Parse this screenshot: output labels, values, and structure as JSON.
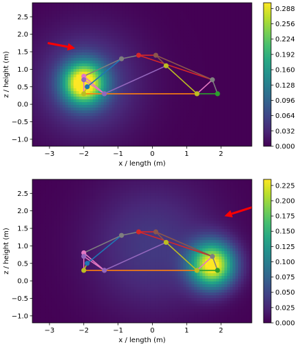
{
  "chart_data": [
    {
      "type": "heatmap",
      "xlabel": "x / length (m)",
      "ylabel": "z / height (m)",
      "xlim": [
        -3.5,
        2.9
      ],
      "ylim": [
        -1.2,
        2.9
      ],
      "xticks": [
        -3,
        -2,
        -1,
        0,
        1,
        2
      ],
      "yticks": [
        -1.0,
        -0.5,
        0.0,
        0.5,
        1.0,
        1.5,
        2.0,
        2.5
      ],
      "colormap": "viridis",
      "colorbar_range": [
        0.0,
        0.3
      ],
      "colorbar_ticks": [
        "0.000",
        "0.032",
        "0.064",
        "0.096",
        "0.128",
        "0.160",
        "0.192",
        "0.224",
        "0.256",
        "0.288"
      ],
      "hotspots": [
        {
          "x": -2.0,
          "z": 0.6,
          "peak": 0.3,
          "spread": 0.42
        },
        {
          "x": -1.9,
          "z": 0.6,
          "peak": 0.06,
          "spread": 1.1
        }
      ],
      "arrow": {
        "from": [
          -3.05,
          1.75
        ],
        "to": [
          -2.25,
          1.6
        ],
        "color": "#ff0000"
      }
    },
    {
      "type": "heatmap",
      "xlabel": "x / length (m)",
      "ylabel": "z / height (m)",
      "xlim": [
        -3.5,
        2.9
      ],
      "ylim": [
        -1.2,
        2.9
      ],
      "xticks": [
        -3,
        -2,
        -1,
        0,
        1,
        2
      ],
      "yticks": [
        -1.0,
        -0.5,
        0.0,
        0.5,
        1.0,
        1.5,
        2.0,
        2.5
      ],
      "colormap": "viridis",
      "colorbar_range": [
        0.0,
        0.235
      ],
      "colorbar_ticks": [
        "0.000",
        "0.025",
        "0.050",
        "0.075",
        "0.100",
        "0.125",
        "0.150",
        "0.175",
        "0.200",
        "0.225"
      ],
      "hotspots": [
        {
          "x": 1.75,
          "z": 0.45,
          "peak": 0.235,
          "spread": 0.45
        },
        {
          "x": 0.0,
          "z": 1.0,
          "peak": 0.04,
          "spread": 1.3
        }
      ],
      "arrow": {
        "from": [
          2.9,
          2.1
        ],
        "to": [
          2.1,
          1.85
        ],
        "color": "#ff0000"
      }
    }
  ],
  "skeleton": {
    "nodes": [
      {
        "id": "n1",
        "x": -2.0,
        "z": 0.8,
        "color": "#e377c2"
      },
      {
        "id": "n2",
        "x": -2.0,
        "z": 0.7,
        "color": "#9467bd"
      },
      {
        "id": "n3",
        "x": -1.9,
        "z": 0.5,
        "color": "#1f77b4"
      },
      {
        "id": "n4",
        "x": -2.0,
        "z": 0.3,
        "color": "#bcbd22"
      },
      {
        "id": "n5",
        "x": -1.4,
        "z": 0.3,
        "color": "#9467bd"
      },
      {
        "id": "n6",
        "x": -0.9,
        "z": 1.3,
        "color": "#7f7f7f"
      },
      {
        "id": "n7",
        "x": -0.4,
        "z": 1.4,
        "color": "#d62728"
      },
      {
        "id": "n8",
        "x": 0.1,
        "z": 1.4,
        "color": "#8c564b"
      },
      {
        "id": "n9",
        "x": 0.4,
        "z": 1.1,
        "color": "#bcbd22"
      },
      {
        "id": "n10",
        "x": 1.3,
        "z": 0.3,
        "color": "#bcbd22"
      },
      {
        "id": "n11",
        "x": 1.75,
        "z": 0.7,
        "color": "#7f7f7f"
      },
      {
        "id": "n12",
        "x": 1.9,
        "z": 0.3,
        "color": "#2ca02c"
      }
    ],
    "edges": [
      {
        "from": "n1",
        "to": "n6",
        "color": "#7f7f7f"
      },
      {
        "from": "n6",
        "to": "n7",
        "color": "#7f7f7f"
      },
      {
        "from": "n7",
        "to": "n8",
        "color": "#d62728"
      },
      {
        "from": "n7",
        "to": "n11",
        "color": "#d62728"
      },
      {
        "from": "n8",
        "to": "n11",
        "color": "#8c564b"
      },
      {
        "from": "n8",
        "to": "n9",
        "color": "#8c564b"
      },
      {
        "from": "n9",
        "to": "n10",
        "color": "#bcbd22"
      },
      {
        "from": "n11",
        "to": "n10",
        "color": "#e377c2"
      },
      {
        "from": "n11",
        "to": "n12",
        "color": "#7f7f7f"
      },
      {
        "from": "n10",
        "to": "n12",
        "color": "#2ca02c"
      },
      {
        "from": "n4",
        "to": "n10",
        "color": "#ff7f0e"
      },
      {
        "from": "n5",
        "to": "n9",
        "color": "#9467bd"
      },
      {
        "from": "n1",
        "to": "n5",
        "color": "#e377c2"
      },
      {
        "from": "n2",
        "to": "n5",
        "color": "#e377c2"
      },
      {
        "from": "n2",
        "to": "n4",
        "color": "#e377c2"
      },
      {
        "from": "n3",
        "to": "n6",
        "color": "#1f77b4"
      },
      {
        "from": "n4",
        "to": "n3",
        "color": "#bcbd22"
      }
    ]
  }
}
